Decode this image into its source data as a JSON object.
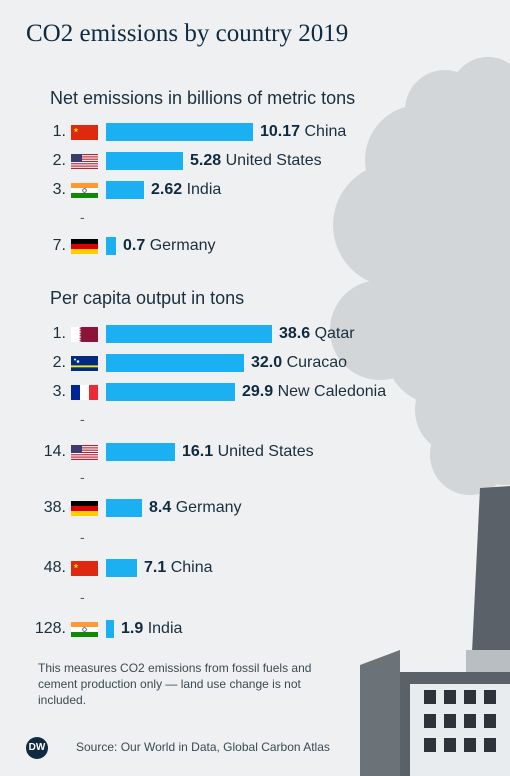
{
  "title": "CO2 emissions by country 2019",
  "note": "This measures CO2 emissions from fossil fuels and cement production only — land use change is not included.",
  "source": "Source: Our World in Data, Global Carbon Atlas",
  "logo": "DW",
  "gap_mark": "-",
  "colors": {
    "bar": "#1bb0f2",
    "text": "#0f2a3f",
    "background": "#eef0f1",
    "smoke": "#d3d6d9",
    "industry": "#5a6168"
  },
  "chart_data": [
    {
      "type": "bar",
      "orientation": "horizontal",
      "title": "Net emissions in billions of metric tons",
      "categories": [
        "China",
        "United States",
        "India",
        "Germany"
      ],
      "ranks": [
        "1.",
        "2.",
        "3.",
        "7."
      ],
      "values": [
        10.17,
        5.28,
        2.62,
        0.7
      ],
      "value_labels": [
        "10.17",
        "5.28",
        "2.62",
        "0.7"
      ],
      "flags": [
        "china",
        "usa",
        "india",
        "germany"
      ]
    },
    {
      "type": "bar",
      "orientation": "horizontal",
      "title": "Per capita output in tons",
      "categories": [
        "Qatar",
        "Curacao",
        "New Caledonia",
        "United States",
        "Germany",
        "China",
        "India"
      ],
      "ranks": [
        "1.",
        "2.",
        "3.",
        "14.",
        "38.",
        "48.",
        "128."
      ],
      "values": [
        38.6,
        32.0,
        29.9,
        16.1,
        8.4,
        7.1,
        1.9
      ],
      "value_labels": [
        "38.6",
        "32.0",
        "29.9",
        "16.1",
        "8.4",
        "7.1",
        "1.9"
      ],
      "flags": [
        "qatar",
        "curacao",
        "new-caledonia",
        "usa",
        "germany",
        "china",
        "india"
      ]
    }
  ]
}
